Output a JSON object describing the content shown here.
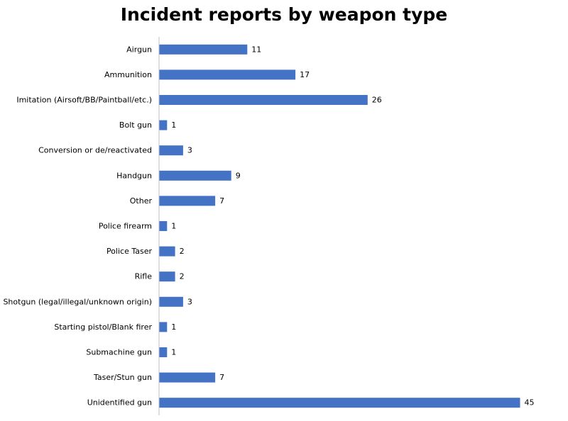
{
  "chart_data": {
    "type": "bar",
    "orientation": "horizontal",
    "title": "Incident reports by weapon type",
    "xlabel": "",
    "ylabel": "",
    "categories": [
      "Airgun",
      "Ammunition",
      "Imitation (Airsoft/BB/Paintball/etc.)",
      "Bolt gun",
      "Conversion or de/reactivated",
      "Handgun",
      "Other",
      "Police firearm",
      "Police Taser",
      "Rifle",
      "Shotgun (legal/illegal/unknown origin)",
      "Starting pistol/Blank firer",
      "Submachine gun",
      "Taser/Stun gun",
      "Unidentified gun"
    ],
    "values": [
      11,
      17,
      26,
      1,
      3,
      9,
      7,
      1,
      2,
      2,
      3,
      1,
      1,
      7,
      45
    ],
    "xlim": [
      0,
      50
    ],
    "grid": false,
    "legend": "none",
    "data_labels": true,
    "bar_color": "#4472C4",
    "axis_color": "#BFBFBF"
  }
}
